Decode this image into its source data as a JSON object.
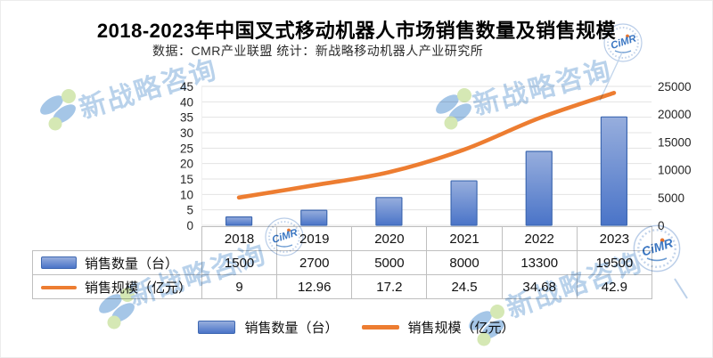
{
  "title": "2018-2023年中国叉式移动机器人市场销售数量及销售规模",
  "subtitle": "数据：CMR产业联盟 统计：新战略移动机器人产业研究所",
  "watermark": {
    "brand_text": "新战略咨询",
    "badge_text": "CiMR",
    "logo_blue": "#a5c6e7",
    "logo_green": "#d5e8b4",
    "text_blue": "#b2cee9"
  },
  "chart_data": {
    "type": "bar+line",
    "categories": [
      "2018",
      "2019",
      "2020",
      "2021",
      "2022",
      "2023"
    ],
    "series": [
      {
        "name": "销售数量（台）",
        "type": "bar",
        "axis": "right",
        "color": "#4472c4",
        "values": [
          1500,
          2700,
          5000,
          8000,
          13300,
          19500
        ]
      },
      {
        "name": "销售规模（亿元）",
        "type": "line",
        "axis": "left",
        "color": "#ed7d31",
        "values": [
          9,
          12.96,
          17.2,
          24.5,
          34.68,
          42.9
        ]
      }
    ],
    "left_axis": {
      "min": 0,
      "max": 45,
      "step": 5
    },
    "right_axis": {
      "min": 0,
      "max": 25000,
      "step": 5000
    },
    "grid": true,
    "legend_position": "bottom",
    "data_table_shown": true
  },
  "colors": {
    "bar_top": "#97aedd",
    "bar_bottom": "#4a74c8",
    "bar_border": "#3e68b1",
    "line": "#ed7d31",
    "gridline": "#e3e3e3",
    "table_border": "#bfbfbf",
    "axis_text": "#262626"
  }
}
